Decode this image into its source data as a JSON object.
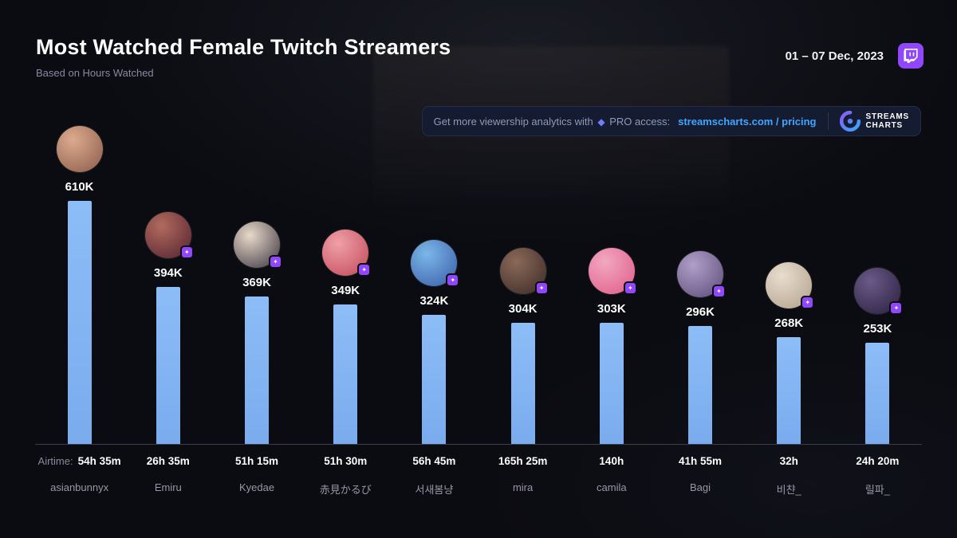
{
  "header": {
    "title": "Most Watched Female Twitch Streamers",
    "subtitle": "Based on Hours Watched",
    "date_range": "01 – 07 Dec, 2023"
  },
  "promo": {
    "text_prefix": "Get more viewership analytics with",
    "diamond": "◆",
    "text_mid": "PRO access:",
    "link": "streamscharts.com / pricing",
    "brand_line1": "STREAMS",
    "brand_line2": "CHARTS"
  },
  "chart_data": {
    "type": "bar",
    "title": "Most Watched Female Twitch Streamers",
    "metric": "Hours Watched (thousands)",
    "unit": "K",
    "ylim": [
      0,
      640
    ],
    "bar_color": "#85b6f2",
    "airtime_label": "Airtime:",
    "categories": [
      "asianbunnyx",
      "Emiru",
      "Kyedae",
      "赤見かるび",
      "서새봄냥",
      "mira",
      "camila",
      "Bagi",
      "비챤_",
      "릴파_"
    ],
    "values": [
      610,
      394,
      369,
      349,
      324,
      304,
      303,
      296,
      268,
      253
    ],
    "streamers": [
      {
        "name": "asianbunnyx",
        "value_label": "610K",
        "value_k": 610,
        "airtime": "54h 35m",
        "badge": false,
        "avatar_colors": [
          "#dcab8e",
          "#8a5a4a"
        ]
      },
      {
        "name": "Emiru",
        "value_label": "394K",
        "value_k": 394,
        "airtime": "26h 35m",
        "badge": true,
        "avatar_colors": [
          "#b36a5e",
          "#50222e"
        ]
      },
      {
        "name": "Kyedae",
        "value_label": "369K",
        "value_k": 369,
        "airtime": "51h 15m",
        "badge": true,
        "avatar_colors": [
          "#e8d9c8",
          "#3a3340"
        ]
      },
      {
        "name": "赤見かるび",
        "value_label": "349K",
        "value_k": 349,
        "airtime": "51h 30m",
        "badge": true,
        "avatar_colors": [
          "#f0a0a8",
          "#c04858"
        ]
      },
      {
        "name": "서새봄냥",
        "value_label": "324K",
        "value_k": 324,
        "airtime": "56h 45m",
        "badge": true,
        "avatar_colors": [
          "#7ab8e8",
          "#3a5aa8"
        ]
      },
      {
        "name": "mira",
        "value_label": "304K",
        "value_k": 304,
        "airtime": "165h 25m",
        "badge": true,
        "avatar_colors": [
          "#8a6a58",
          "#3a2826"
        ]
      },
      {
        "name": "camila",
        "value_label": "303K",
        "value_k": 303,
        "airtime": "140h",
        "badge": true,
        "avatar_colors": [
          "#f2a8c0",
          "#e05a88"
        ]
      },
      {
        "name": "Bagi",
        "value_label": "296K",
        "value_k": 296,
        "airtime": "41h 55m",
        "badge": true,
        "avatar_colors": [
          "#b0a0c8",
          "#5a4a78"
        ]
      },
      {
        "name": "비챤_",
        "value_label": "268K",
        "value_k": 268,
        "airtime": "32h",
        "badge": true,
        "avatar_colors": [
          "#e8ddd0",
          "#b0a088"
        ]
      },
      {
        "name": "릴파_",
        "value_label": "253K",
        "value_k": 253,
        "airtime": "24h 20m",
        "badge": true,
        "avatar_colors": [
          "#6a5a88",
          "#281f3c"
        ]
      }
    ]
  }
}
